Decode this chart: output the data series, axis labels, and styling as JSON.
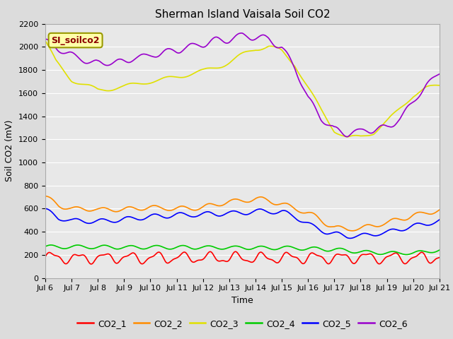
{
  "title": "Sherman Island Vaisala Soil CO2",
  "ylabel": "Soil CO2 (mV)",
  "xlabel": "Time",
  "annotation": "SI_soilco2",
  "ylim": [
    0,
    2200
  ],
  "yticks": [
    0,
    200,
    400,
    600,
    800,
    1000,
    1200,
    1400,
    1600,
    1800,
    2000,
    2200
  ],
  "x_ticks": [
    "Jul 6",
    "Jul 7",
    "Jul 8",
    "Jul 9",
    "Jul 10",
    "Jul 11",
    "Jul 12",
    "Jul 13",
    "Jul 14",
    "Jul 15",
    "Jul 16",
    "Jul 17",
    "Jul 18",
    "Jul 19",
    "Jul 20",
    "Jul 21"
  ],
  "fig_bg": "#dcdcdc",
  "plot_bg": "#e8e8e8",
  "legend_entries": [
    "CO2_1",
    "CO2_2",
    "CO2_3",
    "CO2_4",
    "CO2_5",
    "CO2_6"
  ],
  "legend_colors": [
    "#ff0000",
    "#ff8c00",
    "#e0e000",
    "#00cc00",
    "#0000ff",
    "#9900cc"
  ],
  "co2_3_base_x": [
    0,
    0.4,
    1.0,
    2.0,
    3.0,
    4.0,
    5.0,
    6.0,
    7.0,
    8.0,
    8.5,
    9.0,
    9.5,
    10.0,
    10.5,
    11.0,
    11.5,
    12.0,
    12.5,
    13.0,
    13.5,
    14.0,
    14.5,
    15.0
  ],
  "co2_3_base_y": [
    2050,
    1870,
    1720,
    1630,
    1650,
    1700,
    1750,
    1790,
    1870,
    1980,
    2000,
    1950,
    1850,
    1650,
    1450,
    1280,
    1215,
    1220,
    1260,
    1350,
    1470,
    1580,
    1640,
    1670
  ],
  "co2_6_base_x": [
    0,
    0.3,
    0.6,
    1.0,
    1.5,
    2.0,
    2.5,
    3.0,
    3.5,
    4.0,
    4.5,
    5.0,
    5.5,
    6.0,
    6.5,
    7.0,
    7.5,
    8.0,
    8.5,
    9.0,
    9.5,
    10.0,
    10.5,
    11.0,
    11.5,
    12.0,
    12.5,
    13.0,
    13.5,
    14.0,
    14.5,
    15.0
  ],
  "co2_6_base_y": [
    2050,
    2010,
    1970,
    1930,
    1890,
    1860,
    1870,
    1880,
    1900,
    1920,
    1950,
    1970,
    2000,
    2020,
    2050,
    2060,
    2100,
    2080,
    2070,
    2000,
    1820,
    1550,
    1380,
    1280,
    1260,
    1265,
    1280,
    1310,
    1380,
    1520,
    1660,
    1770
  ],
  "co2_2_base_x": [
    0,
    0.3,
    0.5,
    1.0,
    2.0,
    3.0,
    4.0,
    5.0,
    6.0,
    7.0,
    7.5,
    8.0,
    8.5,
    9.0,
    9.5,
    10.0,
    10.5,
    11.0,
    11.5,
    12.0,
    12.5,
    13.0,
    13.5,
    14.0,
    14.5,
    15.0
  ],
  "co2_2_base_y": [
    710,
    660,
    630,
    600,
    590,
    595,
    610,
    600,
    610,
    660,
    670,
    680,
    670,
    640,
    600,
    560,
    500,
    440,
    420,
    430,
    450,
    480,
    510,
    545,
    565,
    580
  ],
  "co2_5_base_x": [
    0,
    0.5,
    1.0,
    2.0,
    3.0,
    4.0,
    5.0,
    6.0,
    7.0,
    8.0,
    8.5,
    9.0,
    9.5,
    10.0,
    10.5,
    11.0,
    11.5,
    12.0,
    12.5,
    13.0,
    13.5,
    14.0,
    14.5,
    15.0
  ],
  "co2_5_base_y": [
    585,
    520,
    500,
    490,
    510,
    530,
    545,
    550,
    555,
    575,
    580,
    570,
    530,
    470,
    420,
    380,
    360,
    360,
    375,
    395,
    420,
    450,
    470,
    490
  ],
  "co2_4_base_x": [
    0,
    3,
    6,
    9,
    10,
    11,
    12,
    13,
    14,
    15
  ],
  "co2_4_base_y": [
    270,
    265,
    265,
    260,
    255,
    245,
    225,
    215,
    215,
    242
  ],
  "co2_1_base": 175,
  "co2_1_amp": 40,
  "title_fontsize": 11,
  "axis_fontsize": 9,
  "tick_fontsize": 8
}
